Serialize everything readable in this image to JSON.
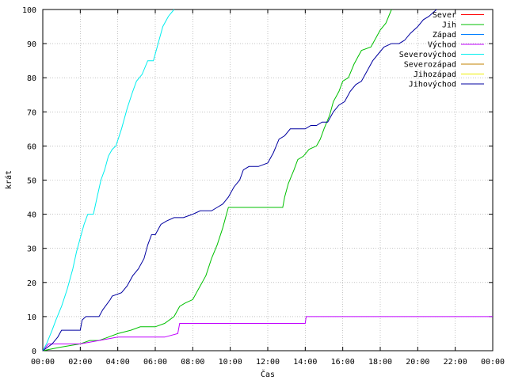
{
  "chart_data": {
    "type": "line",
    "xlabel": "Čas",
    "ylabel": "krát",
    "xlim": [
      0,
      24
    ],
    "ylim": [
      0,
      100
    ],
    "grid": true,
    "legend_placement": "top-right",
    "x_ticks": [
      {
        "value": 0,
        "label": "00:00"
      },
      {
        "value": 2,
        "label": "02:00"
      },
      {
        "value": 4,
        "label": "04:00"
      },
      {
        "value": 6,
        "label": "06:00"
      },
      {
        "value": 8,
        "label": "08:00"
      },
      {
        "value": 10,
        "label": "10:00"
      },
      {
        "value": 12,
        "label": "12:00"
      },
      {
        "value": 14,
        "label": "14:00"
      },
      {
        "value": 16,
        "label": "16:00"
      },
      {
        "value": 18,
        "label": "18:00"
      },
      {
        "value": 20,
        "label": "20:00"
      },
      {
        "value": 22,
        "label": "22:00"
      },
      {
        "value": 24,
        "label": "00:00"
      }
    ],
    "y_ticks": [
      0,
      10,
      20,
      30,
      40,
      50,
      60,
      70,
      80,
      90,
      100
    ],
    "series": [
      {
        "name": "Sever",
        "color": "#ff0000",
        "points": []
      },
      {
        "name": "Jih",
        "color": "#00c000",
        "points": [
          [
            0,
            0
          ],
          [
            0.9,
            1
          ],
          [
            2.0,
            2
          ],
          [
            2.5,
            3
          ],
          [
            3.0,
            3
          ],
          [
            3.5,
            4
          ],
          [
            4.0,
            5
          ],
          [
            4.7,
            6
          ],
          [
            5.2,
            7
          ],
          [
            6.0,
            7
          ],
          [
            6.5,
            8
          ],
          [
            7.0,
            10
          ],
          [
            7.3,
            13
          ],
          [
            7.6,
            14
          ],
          [
            8.0,
            15
          ],
          [
            8.3,
            18
          ],
          [
            8.7,
            22
          ],
          [
            9.0,
            27
          ],
          [
            9.3,
            31
          ],
          [
            9.6,
            36
          ],
          [
            9.8,
            40
          ],
          [
            9.9,
            42
          ],
          [
            10.5,
            42
          ],
          [
            11.5,
            42
          ],
          [
            12.0,
            42
          ],
          [
            12.8,
            42
          ],
          [
            12.9,
            45
          ],
          [
            13.1,
            49
          ],
          [
            13.4,
            53
          ],
          [
            13.6,
            56
          ],
          [
            13.9,
            57
          ],
          [
            14.2,
            59
          ],
          [
            14.6,
            60
          ],
          [
            14.8,
            62
          ],
          [
            15.0,
            65
          ],
          [
            15.3,
            69
          ],
          [
            15.5,
            73
          ],
          [
            15.8,
            76
          ],
          [
            16.0,
            79
          ],
          [
            16.3,
            80
          ],
          [
            16.6,
            84
          ],
          [
            16.8,
            86
          ],
          [
            17.0,
            88
          ],
          [
            17.5,
            89
          ],
          [
            17.8,
            92
          ],
          [
            18.0,
            94
          ],
          [
            18.3,
            96
          ],
          [
            18.6,
            100
          ]
        ]
      },
      {
        "name": "Západ",
        "color": "#0080ff",
        "points": []
      },
      {
        "name": "Východ",
        "color": "#c000ff",
        "points": [
          [
            0,
            0
          ],
          [
            0.3,
            2
          ],
          [
            2.0,
            2
          ],
          [
            3.0,
            3
          ],
          [
            4.0,
            4
          ],
          [
            5.5,
            4
          ],
          [
            6.5,
            4
          ],
          [
            7.2,
            5
          ],
          [
            7.3,
            8
          ],
          [
            10,
            8
          ],
          [
            12,
            8
          ],
          [
            14.0,
            8
          ],
          [
            14.05,
            10
          ],
          [
            24,
            10
          ]
        ]
      },
      {
        "name": "Severovýchod",
        "color": "#00eeee",
        "points": [
          [
            0,
            0
          ],
          [
            0.2,
            2
          ],
          [
            0.5,
            6
          ],
          [
            0.7,
            9
          ],
          [
            1.0,
            13
          ],
          [
            1.3,
            18
          ],
          [
            1.6,
            24
          ],
          [
            1.8,
            29
          ],
          [
            2.0,
            33
          ],
          [
            2.2,
            37
          ],
          [
            2.4,
            40
          ],
          [
            2.7,
            40
          ],
          [
            2.9,
            45
          ],
          [
            3.1,
            50
          ],
          [
            3.3,
            53
          ],
          [
            3.5,
            57
          ],
          [
            3.7,
            59
          ],
          [
            3.9,
            60
          ],
          [
            4.2,
            65
          ],
          [
            4.5,
            71
          ],
          [
            4.8,
            76
          ],
          [
            5.0,
            79
          ],
          [
            5.3,
            81
          ],
          [
            5.6,
            85
          ],
          [
            5.9,
            85
          ],
          [
            6.1,
            89
          ],
          [
            6.4,
            95
          ],
          [
            6.7,
            98
          ],
          [
            7.0,
            100
          ]
        ]
      },
      {
        "name": "Severozápad",
        "color": "#c08000",
        "points": []
      },
      {
        "name": "Jihozápad",
        "color": "#eeee00",
        "points": []
      },
      {
        "name": "Jihovýchod",
        "color": "#0000a0",
        "points": [
          [
            0,
            0
          ],
          [
            0.5,
            2
          ],
          [
            0.8,
            4
          ],
          [
            1.0,
            6
          ],
          [
            2.0,
            6
          ],
          [
            2.1,
            9
          ],
          [
            2.3,
            10
          ],
          [
            3.0,
            10
          ],
          [
            3.2,
            12
          ],
          [
            3.6,
            15
          ],
          [
            3.7,
            16
          ],
          [
            4.2,
            17
          ],
          [
            4.5,
            19
          ],
          [
            4.8,
            22
          ],
          [
            5.1,
            24
          ],
          [
            5.4,
            27
          ],
          [
            5.6,
            31
          ],
          [
            5.8,
            34
          ],
          [
            6.0,
            34
          ],
          [
            6.3,
            37
          ],
          [
            6.6,
            38
          ],
          [
            7.0,
            39
          ],
          [
            7.5,
            39
          ],
          [
            8.0,
            40
          ],
          [
            8.4,
            41
          ],
          [
            9.0,
            41
          ],
          [
            9.3,
            42
          ],
          [
            9.6,
            43
          ],
          [
            9.9,
            45
          ],
          [
            10.2,
            48
          ],
          [
            10.5,
            50
          ],
          [
            10.7,
            53
          ],
          [
            11.0,
            54
          ],
          [
            11.5,
            54
          ],
          [
            12.0,
            55
          ],
          [
            12.3,
            58
          ],
          [
            12.6,
            62
          ],
          [
            12.9,
            63
          ],
          [
            13.2,
            65
          ],
          [
            13.5,
            65
          ],
          [
            14.0,
            65
          ],
          [
            14.3,
            66
          ],
          [
            14.6,
            66
          ],
          [
            14.9,
            67
          ],
          [
            15.2,
            67
          ],
          [
            15.5,
            70
          ],
          [
            15.8,
            72
          ],
          [
            16.1,
            73
          ],
          [
            16.4,
            76
          ],
          [
            16.7,
            78
          ],
          [
            17.0,
            79
          ],
          [
            17.3,
            82
          ],
          [
            17.6,
            85
          ],
          [
            17.9,
            87
          ],
          [
            18.2,
            89
          ],
          [
            18.6,
            90
          ],
          [
            19.0,
            90
          ],
          [
            19.3,
            91
          ],
          [
            19.6,
            93
          ],
          [
            20.0,
            95
          ],
          [
            20.3,
            97
          ],
          [
            20.6,
            98
          ],
          [
            21.0,
            100
          ]
        ]
      }
    ]
  }
}
